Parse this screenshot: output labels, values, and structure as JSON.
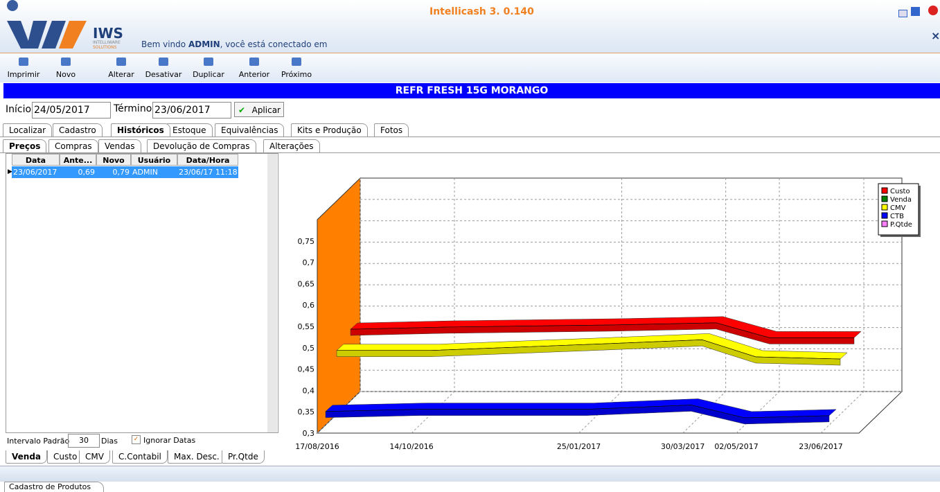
{
  "window": {
    "title": "Intellicash 3. 0.140",
    "logo": "IWS",
    "logo_line1": "INTELLIWARE",
    "logo_line2": "SOLUTIONS",
    "welcome_prefix": "Bem vindo",
    "welcome_user": "ADMIN",
    "welcome_suffix": ", você está conectado em"
  },
  "toolbar": [
    "Imprimir",
    "Novo",
    "Alterar",
    "Desativar",
    "Duplicar",
    "Anterior",
    "Próximo"
  ],
  "product": "REFR FRESH 15G MORANGO",
  "filter": {
    "start_label": "Início",
    "start": "24/05/2017",
    "end_label": "Término",
    "end": "23/06/2017",
    "apply": "Aplicar"
  },
  "tabs": [
    "Localizar",
    "Cadastro",
    "Históricos",
    "Estoque",
    "Equivalências",
    "Kits e Produção",
    "Fotos"
  ],
  "active_tab": 2,
  "subtabs": [
    "Preços",
    "Compras",
    "Vendas",
    "Devolução de Compras",
    "Alterações"
  ],
  "active_subtab": 0,
  "table": {
    "columns": [
      "Data",
      "Ante...",
      "Novo",
      "Usuário",
      "Data/Hora"
    ],
    "rows": [
      [
        "23/06/2017",
        "0,69",
        "0,79",
        "ADMIN",
        "23/06/17 11:18"
      ]
    ]
  },
  "interval": {
    "label": "Intervalo Padrão",
    "value": 30,
    "unit": "Dias",
    "ignore": "Ignorar Datas"
  },
  "bottom_tabs": [
    "Venda",
    "Custo",
    "CMV",
    "C.Contabil",
    "Max. Desc.",
    "Pr.Qtde"
  ],
  "active_bottom_tab": 0,
  "status": "Cadastro de Produtos",
  "chart_data": {
    "type": "line3d",
    "x": [
      "17/08/2016",
      "14/10/2016",
      "25/01/2017",
      "30/03/2017",
      "02/05/2017",
      "23/06/2017"
    ],
    "xlim": [
      "17/08/2016",
      "23/06/2017"
    ],
    "xticks": [
      "17/08/2016",
      "14/10/2016",
      "25/01/2017",
      "30/03/2017",
      "02/05/2017",
      "23/06/2017"
    ],
    "ylim": [
      0.3,
      0.8
    ],
    "yticks": [
      {
        "value": 0.3,
        "label": "0,3"
      },
      {
        "value": 0.35,
        "label": "0,35"
      },
      {
        "value": 0.4,
        "label": "0,4"
      },
      {
        "value": 0.45,
        "label": "0,45"
      },
      {
        "value": 0.5,
        "label": "0,5"
      },
      {
        "value": 0.55,
        "label": "0,55"
      },
      {
        "value": 0.6,
        "label": "0,6"
      },
      {
        "value": 0.65,
        "label": "0,65"
      },
      {
        "value": 0.7,
        "label": "0,7"
      },
      {
        "value": 0.75,
        "label": "0,75"
      }
    ],
    "grid": true,
    "legend": "top-right",
    "wall_color": "#ff8000",
    "series": [
      {
        "name": "Custo",
        "color": "#ff0000",
        "values": [
          0.52,
          0.525,
          0.53,
          0.535,
          0.5,
          0.5
        ]
      },
      {
        "name": "Venda",
        "color": "#008000",
        "values": [
          null,
          null,
          null,
          null,
          null,
          null
        ]
      },
      {
        "name": "CMV",
        "color": "#ffff00",
        "values": [
          0.48,
          0.48,
          0.495,
          0.505,
          0.465,
          0.46
        ]
      },
      {
        "name": "CTB",
        "color": "#0000ff",
        "values": [
          0.345,
          0.35,
          0.35,
          0.36,
          0.33,
          0.335
        ]
      },
      {
        "name": "P.Qtde",
        "color": "#ff80ff",
        "values": [
          null,
          null,
          null,
          null,
          null,
          null
        ]
      }
    ]
  }
}
